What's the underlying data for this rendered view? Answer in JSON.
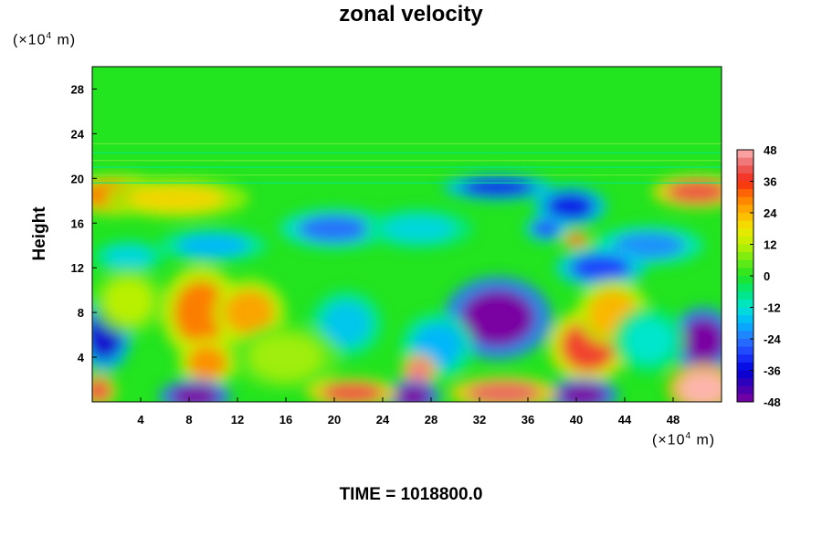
{
  "chart_data": {
    "type": "heatmap",
    "title": "zonal velocity",
    "ylabel": "Height",
    "xlabel": "",
    "x_unit_prefix": "(×10",
    "x_unit_exp": "4",
    "x_unit_suffix": " m)",
    "y_unit_prefix": "(×10",
    "y_unit_exp": "4",
    "y_unit_suffix": " m)",
    "xlim": [
      0,
      52
    ],
    "ylim": [
      0,
      30
    ],
    "x_ticks": [
      4,
      8,
      12,
      16,
      20,
      24,
      28,
      32,
      36,
      40,
      44,
      48
    ],
    "y_ticks": [
      4,
      8,
      12,
      16,
      20,
      24,
      28
    ],
    "colorbar": {
      "range": [
        -48,
        48
      ],
      "tick_values": [
        48,
        36,
        24,
        12,
        0,
        -12,
        -24,
        -36,
        -48
      ],
      "tick_labels": [
        "48",
        "36",
        "24",
        "12",
        "0",
        "-12",
        "-24",
        "-36",
        "-48"
      ]
    },
    "features": [
      {
        "x": 2,
        "y": 18.5,
        "v": 30,
        "sx": 3,
        "sy": 1.2
      },
      {
        "x": 7,
        "y": 18.2,
        "v": 20,
        "sx": 4,
        "sy": 1.2
      },
      {
        "x": 50,
        "y": 18.8,
        "v": 40,
        "sx": 2.5,
        "sy": 1.0
      },
      {
        "x": 33.5,
        "y": 19.2,
        "v": -34,
        "sx": 3,
        "sy": 0.8
      },
      {
        "x": 39.5,
        "y": 17.5,
        "v": -34,
        "sx": 2,
        "sy": 1.2
      },
      {
        "x": 40,
        "y": 14.5,
        "v": 34,
        "sx": 0.8,
        "sy": 0.5
      },
      {
        "x": 37.5,
        "y": 15.5,
        "v": -28,
        "sx": 1.2,
        "sy": 0.8
      },
      {
        "x": 46,
        "y": 14,
        "v": -22,
        "sx": 3,
        "sy": 1.2
      },
      {
        "x": 20,
        "y": 15.5,
        "v": -25,
        "sx": 3,
        "sy": 1.2
      },
      {
        "x": 27,
        "y": 15.5,
        "v": -14,
        "sx": 3,
        "sy": 1.2
      },
      {
        "x": 10,
        "y": 14,
        "v": -18,
        "sx": 3,
        "sy": 1.0
      },
      {
        "x": 3,
        "y": 13,
        "v": -14,
        "sx": 2,
        "sy": 1.0
      },
      {
        "x": 42,
        "y": 12,
        "v": -30,
        "sx": 2.5,
        "sy": 1.2
      },
      {
        "x": 33.5,
        "y": 7.5,
        "v": -48,
        "sx": 3,
        "sy": 2.5
      },
      {
        "x": 1,
        "y": 6,
        "v": -38,
        "sx": 1.5,
        "sy": 2.2
      },
      {
        "x": 50.5,
        "y": 5.5,
        "v": -48,
        "sx": 1.8,
        "sy": 2.0
      },
      {
        "x": 28.5,
        "y": 5,
        "v": -18,
        "sx": 2,
        "sy": 2.0
      },
      {
        "x": 21,
        "y": 7,
        "v": -16,
        "sx": 2,
        "sy": 2.0
      },
      {
        "x": 41,
        "y": 5,
        "v": 38,
        "sx": 2.2,
        "sy": 2.2
      },
      {
        "x": 43,
        "y": 8,
        "v": 24,
        "sx": 2,
        "sy": 2.0
      },
      {
        "x": 9,
        "y": 8,
        "v": 30,
        "sx": 2.2,
        "sy": 2.8
      },
      {
        "x": 9.5,
        "y": 3.5,
        "v": 28,
        "sx": 1.6,
        "sy": 1.5
      },
      {
        "x": 13,
        "y": 8,
        "v": 26,
        "sx": 2,
        "sy": 2.0
      },
      {
        "x": 3,
        "y": 9,
        "v": 12,
        "sx": 2,
        "sy": 2.0
      },
      {
        "x": 27,
        "y": 2.8,
        "v": 44,
        "sx": 1.0,
        "sy": 1.0
      },
      {
        "x": 8.5,
        "y": 0.5,
        "v": -48,
        "sx": 2,
        "sy": 1.0
      },
      {
        "x": 26.5,
        "y": 0.5,
        "v": -48,
        "sx": 1.5,
        "sy": 1.0
      },
      {
        "x": 40.5,
        "y": 0.6,
        "v": -48,
        "sx": 2,
        "sy": 1.0
      },
      {
        "x": 21.5,
        "y": 0.8,
        "v": 40,
        "sx": 2.5,
        "sy": 0.9
      },
      {
        "x": 34,
        "y": 0.8,
        "v": 42,
        "sx": 3,
        "sy": 1.0
      },
      {
        "x": 50.5,
        "y": 1.2,
        "v": 48,
        "sx": 2,
        "sy": 1.5
      },
      {
        "x": 0.5,
        "y": 1.0,
        "v": 40,
        "sx": 1,
        "sy": 1.0
      },
      {
        "x": 16,
        "y": 4,
        "v": 10,
        "sx": 3,
        "sy": 2.0
      },
      {
        "x": 46,
        "y": 5.5,
        "v": -12,
        "sx": 2,
        "sy": 2.0
      }
    ]
  },
  "footer": {
    "time_label": "TIME = 1018800.0"
  }
}
